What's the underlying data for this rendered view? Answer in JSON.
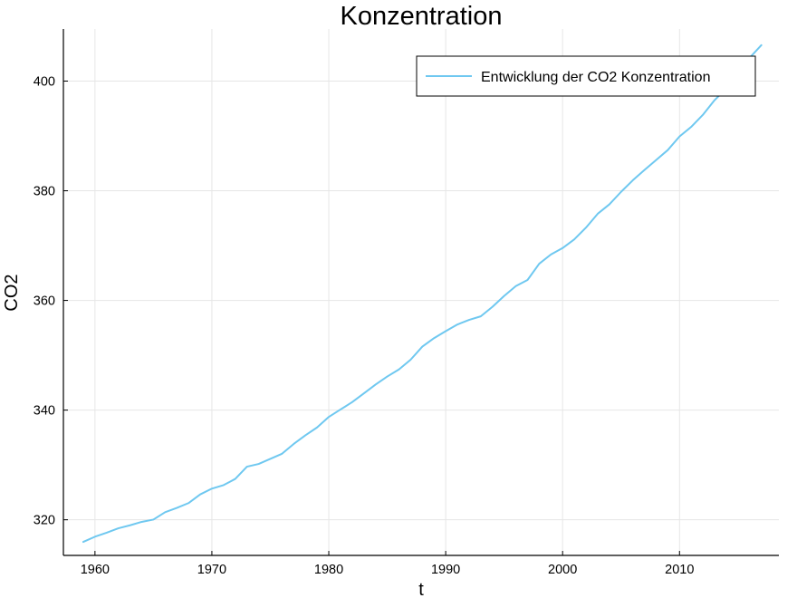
{
  "chart_data": {
    "type": "line",
    "title": "Konzentration",
    "xlabel": "t",
    "ylabel": "CO2",
    "xlim": [
      1957.3,
      2018.5
    ],
    "ylim": [
      313.5,
      409.5
    ],
    "xticks": [
      1960,
      1970,
      1980,
      1990,
      2000,
      2010
    ],
    "yticks": [
      320,
      340,
      360,
      380,
      400
    ],
    "grid": true,
    "legend_position": "top-right",
    "series": [
      {
        "name": "Entwicklung der CO2 Konzentration",
        "color": "#6fc8f0",
        "x": [
          1959,
          1960,
          1961,
          1962,
          1963,
          1964,
          1965,
          1966,
          1967,
          1968,
          1969,
          1970,
          1971,
          1972,
          1973,
          1974,
          1975,
          1976,
          1977,
          1978,
          1979,
          1980,
          1981,
          1982,
          1983,
          1984,
          1985,
          1986,
          1987,
          1988,
          1989,
          1990,
          1991,
          1992,
          1993,
          1994,
          1995,
          1996,
          1997,
          1998,
          1999,
          2000,
          2001,
          2002,
          2003,
          2004,
          2005,
          2006,
          2007,
          2008,
          2009,
          2010,
          2011,
          2012,
          2013,
          2014,
          2015,
          2016,
          2017
        ],
        "y": [
          315.97,
          316.91,
          317.64,
          318.45,
          318.99,
          319.62,
          320.04,
          321.38,
          322.16,
          323.04,
          324.62,
          325.68,
          326.32,
          327.45,
          329.68,
          330.18,
          331.11,
          332.04,
          333.83,
          335.4,
          336.84,
          338.75,
          340.11,
          341.45,
          343.05,
          344.65,
          346.12,
          347.42,
          349.19,
          351.57,
          353.12,
          354.39,
          355.61,
          356.45,
          357.1,
          358.83,
          360.82,
          362.61,
          363.73,
          366.7,
          368.38,
          369.55,
          371.14,
          373.28,
          375.8,
          377.52,
          379.8,
          381.9,
          383.79,
          385.6,
          387.43,
          389.9,
          391.65,
          393.85,
          396.52,
          398.65,
          400.83,
          404.24,
          406.55
        ]
      }
    ]
  }
}
